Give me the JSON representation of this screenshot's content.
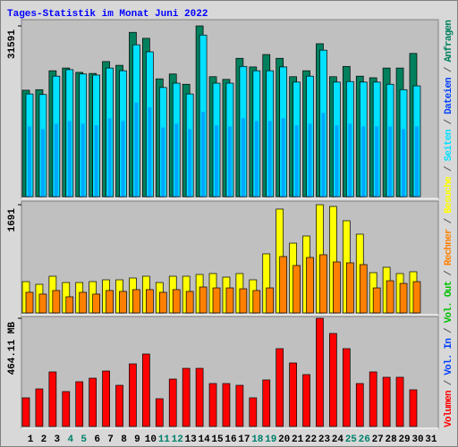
{
  "chart_data": [
    {
      "type": "bar",
      "title": "Tages-Statistik im Monat Juni 2022",
      "ylim": [
        0,
        31591
      ],
      "yticks": [
        31591
      ],
      "tick_color": "#00805c",
      "series": [
        {
          "name": "Anfragen",
          "color": "#00805c",
          "values": [
            19700,
            19800,
            23300,
            23800,
            23000,
            22800,
            25000,
            24300,
            30400,
            29300,
            21800,
            22700,
            20800,
            31591,
            22200,
            21700,
            25600,
            24000,
            26300,
            25600,
            22200,
            23300,
            28300,
            22200,
            24100,
            22300,
            22000,
            23800,
            23800,
            26500,
            null
          ]
        },
        {
          "name": "Dateien",
          "color": "#0040ff",
          "values": [
            13000,
            12500,
            13500,
            14000,
            13500,
            13200,
            14500,
            14000,
            17400,
            16500,
            12800,
            13500,
            12500,
            15700,
            13200,
            13000,
            14500,
            14000,
            14000,
            14500,
            13200,
            13500,
            15500,
            13200,
            13500,
            13000,
            13000,
            13000,
            12500,
            13000,
            null
          ]
        },
        {
          "name": "Seiten",
          "color": "#00e0ff",
          "values": [
            19000,
            18900,
            22300,
            23500,
            22700,
            22500,
            23800,
            23300,
            28100,
            26800,
            20200,
            21000,
            19000,
            29900,
            21000,
            21000,
            24100,
            23300,
            23300,
            24000,
            21200,
            22300,
            27100,
            21200,
            21300,
            21200,
            21200,
            20800,
            19800,
            20500,
            null
          ]
        }
      ]
    },
    {
      "type": "bar",
      "ylim": [
        0,
        1691
      ],
      "yticks": [
        1691
      ],
      "tick_color": "#ff8000",
      "series": [
        {
          "name": "Besuche",
          "color": "#ffff00",
          "values": [
            489,
            447,
            573,
            475,
            475,
            489,
            517,
            517,
            545,
            573,
            475,
            573,
            573,
            601,
            615,
            559,
            615,
            517,
            923,
            1622,
            1090,
            1202,
            1691,
            1664,
            1440,
            1230,
            629,
            713,
            615,
            643,
            null
          ]
        },
        {
          "name": "Rechner",
          "color": "#ff8000",
          "values": [
            322,
            294,
            350,
            252,
            322,
            294,
            350,
            336,
            364,
            364,
            322,
            364,
            336,
            405,
            391,
            391,
            377,
            350,
            391,
            881,
            741,
            867,
            909,
            797,
            783,
            755,
            391,
            503,
            461,
            489,
            null
          ]
        }
      ]
    },
    {
      "type": "bar",
      "ylim": [
        0,
        464.11
      ],
      "yticks": [
        {
          "value": 464.11,
          "label": "464.11 MB"
        }
      ],
      "tick_color": "#ff0000",
      "categories": [
        "1",
        "2",
        "3",
        "4",
        "5",
        "6",
        "7",
        "8",
        "9",
        "10",
        "11",
        "12",
        "13",
        "14",
        "15",
        "16",
        "17",
        "18",
        "19",
        "20",
        "21",
        "22",
        "23",
        "24",
        "25",
        "26",
        "27",
        "28",
        "29",
        "30",
        "31"
      ],
      "weekend_indices": [
        3,
        4,
        10,
        11,
        17,
        18,
        24,
        25
      ],
      "weekend_color": "#00806c",
      "series": [
        {
          "name": "Volumen",
          "color": "#ff0000",
          "values": [
            122.8,
            161.1,
            234,
            149.6,
            191.8,
            207.1,
            237.8,
            176.5,
            268.5,
            310.7,
            118.9,
            203.3,
            249.3,
            249.3,
            184.1,
            184.1,
            176.5,
            122.8,
            199.5,
            333.7,
            272.4,
            222.5,
            464.11,
            398.9,
            333.7,
            184.1,
            234,
            211,
            211,
            157.3,
            null
          ]
        }
      ],
      "extra_legend": [
        {
          "name": "Vol. In",
          "color": "#0040ff"
        },
        {
          "name": "Vol. Out",
          "color": "#00c000"
        }
      ],
      "legend_separator": " / "
    }
  ]
}
